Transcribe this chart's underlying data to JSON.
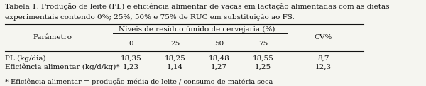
{
  "title_line1": "Tabela 1. Produção de leite (PL) e eficiência alimentar de vacas em lactação alimentadas com as dietas",
  "title_line2": "experimentais contendo 0%; 25%, 50% e 75% de RUC em substituição ao FS.",
  "col_header_main": "Níveis de resíduo úmido de cervejaria (%)",
  "col_header_sub": [
    "0",
    "25",
    "50",
    "75"
  ],
  "col_param": "Parâmetro",
  "col_cv": "CV%",
  "rows": [
    {
      "param": "PL (kg/dia)",
      "values": [
        "18,35",
        "18,25",
        "18,48",
        "18,55"
      ],
      "cv": "8,7"
    },
    {
      "param": "Eficiência alimentar (kg/d/kg)*",
      "values": [
        "1,23",
        "1,14",
        "1,27",
        "1,25"
      ],
      "cv": "12,3"
    }
  ],
  "footnote": "* Eficiência alimentar = produção média de leite / consumo de matéria seca",
  "bg_color": "#f5f5f0",
  "text_color": "#111111",
  "font_size": 7.5,
  "title_font_size": 7.5
}
